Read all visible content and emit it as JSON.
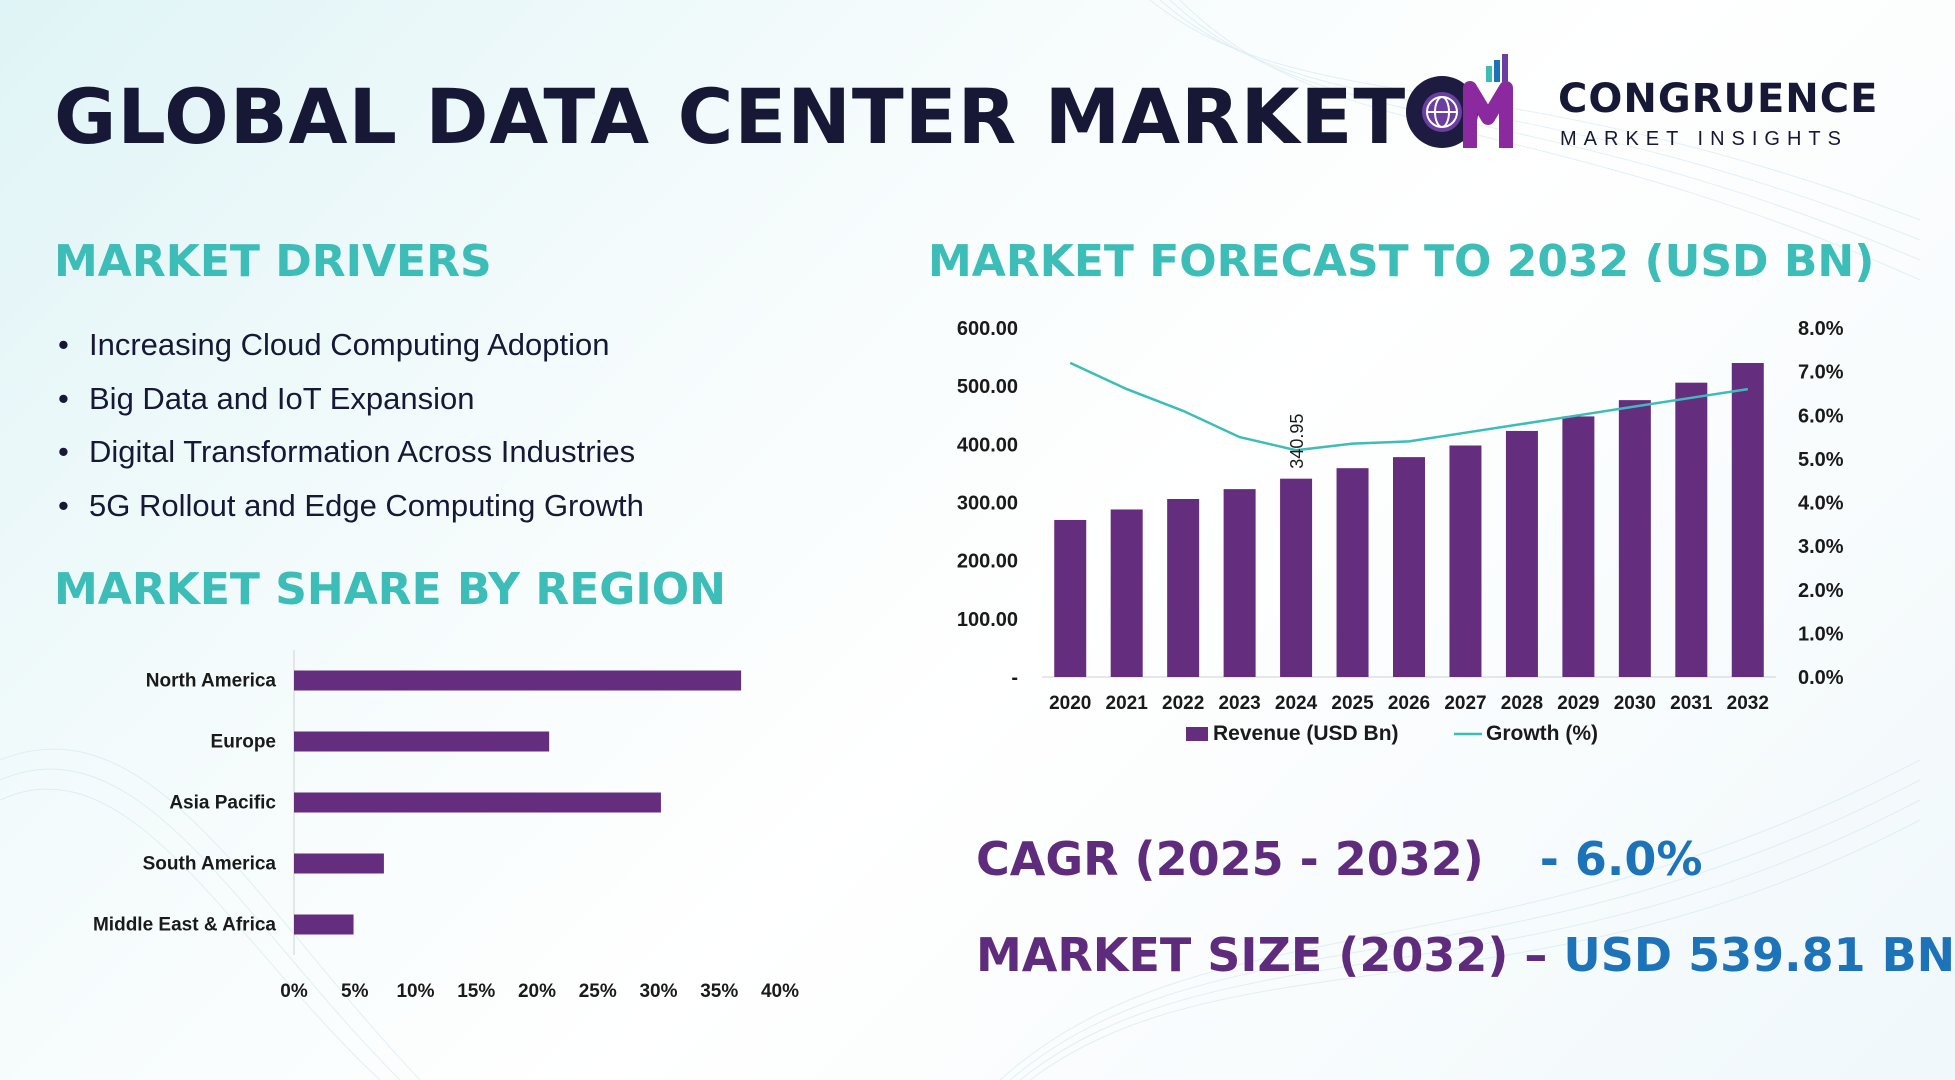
{
  "title": "GLOBAL DATA CENTER MARKET",
  "logo": {
    "mark_text": "CM",
    "name": "CONGRUENCE",
    "tagline": "MARKET INSIGHTS"
  },
  "colors": {
    "title": "#161836",
    "heading": "#3cbdb8",
    "bar": "#652d7d",
    "growth_line": "#3cbdb8",
    "kpi_label": "#5f2b7c",
    "kpi_value": "#1d73b8"
  },
  "drivers": {
    "heading": "MARKET DRIVERS",
    "bullet": "•",
    "items": [
      "Increasing Cloud Computing Adoption",
      "Big Data and IoT Expansion",
      "Digital Transformation Across Industries",
      "5G Rollout and Edge Computing Growth"
    ]
  },
  "region": {
    "heading": "MARKET SHARE BY REGION"
  },
  "forecast": {
    "heading": "MARKET FORECAST TO 2032 (USD BN)"
  },
  "kpis": {
    "cagr_label": "CAGR (2025 - 2032)",
    "cagr_value": "- 6.0%",
    "size_label": "MARKET SIZE (2032) –",
    "size_value": "USD 539.81 BN"
  },
  "chart_data": [
    {
      "type": "bar",
      "orientation": "horizontal",
      "categories": [
        "North America",
        "Europe",
        "Asia Pacific",
        "South America",
        "Middle East & Africa"
      ],
      "values": [
        36.8,
        21.0,
        30.2,
        7.4,
        4.9
      ],
      "unit": "%",
      "xlim": [
        0,
        40
      ],
      "ticks": [
        "0%",
        "5%",
        "10%",
        "15%",
        "20%",
        "25%",
        "30%",
        "35%",
        "40%"
      ],
      "tick_values": [
        0,
        5,
        10,
        15,
        20,
        25,
        30,
        35,
        40
      ],
      "grid": false
    },
    {
      "type": "bar",
      "categories": [
        "2020",
        "2021",
        "2022",
        "2023",
        "2024",
        "2025",
        "2026",
        "2027",
        "2028",
        "2029",
        "2030",
        "2031",
        "2032"
      ],
      "series": [
        {
          "name": "Revenue (USD Bn)",
          "kind": "bar",
          "axis": "left",
          "values": [
            270,
            288,
            306,
            323,
            340.95,
            359,
            378,
            398,
            423,
            448,
            476,
            506,
            539.81
          ]
        },
        {
          "name": "Growth (%)",
          "kind": "line",
          "axis": "right",
          "values": [
            7.2,
            6.6,
            6.1,
            5.5,
            5.2,
            5.35,
            5.4,
            5.6,
            5.8,
            6.0,
            6.2,
            6.4,
            6.6
          ]
        }
      ],
      "annotation": {
        "category": "2024",
        "text": "340.95"
      },
      "ylim": [
        0,
        600
      ],
      "yticks": [
        "-",
        "100.00",
        "200.00",
        "300.00",
        "400.00",
        "500.00",
        "600.00"
      ],
      "ytick_values": [
        0,
        100,
        200,
        300,
        400,
        500,
        600
      ],
      "y2lim": [
        0,
        8
      ],
      "y2ticks": [
        "0.0%",
        "1.0%",
        "2.0%",
        "3.0%",
        "4.0%",
        "5.0%",
        "6.0%",
        "7.0%",
        "8.0%"
      ],
      "y2tick_values": [
        0,
        1,
        2,
        3,
        4,
        5,
        6,
        7,
        8
      ],
      "legend": "bottom",
      "grid": false
    }
  ]
}
